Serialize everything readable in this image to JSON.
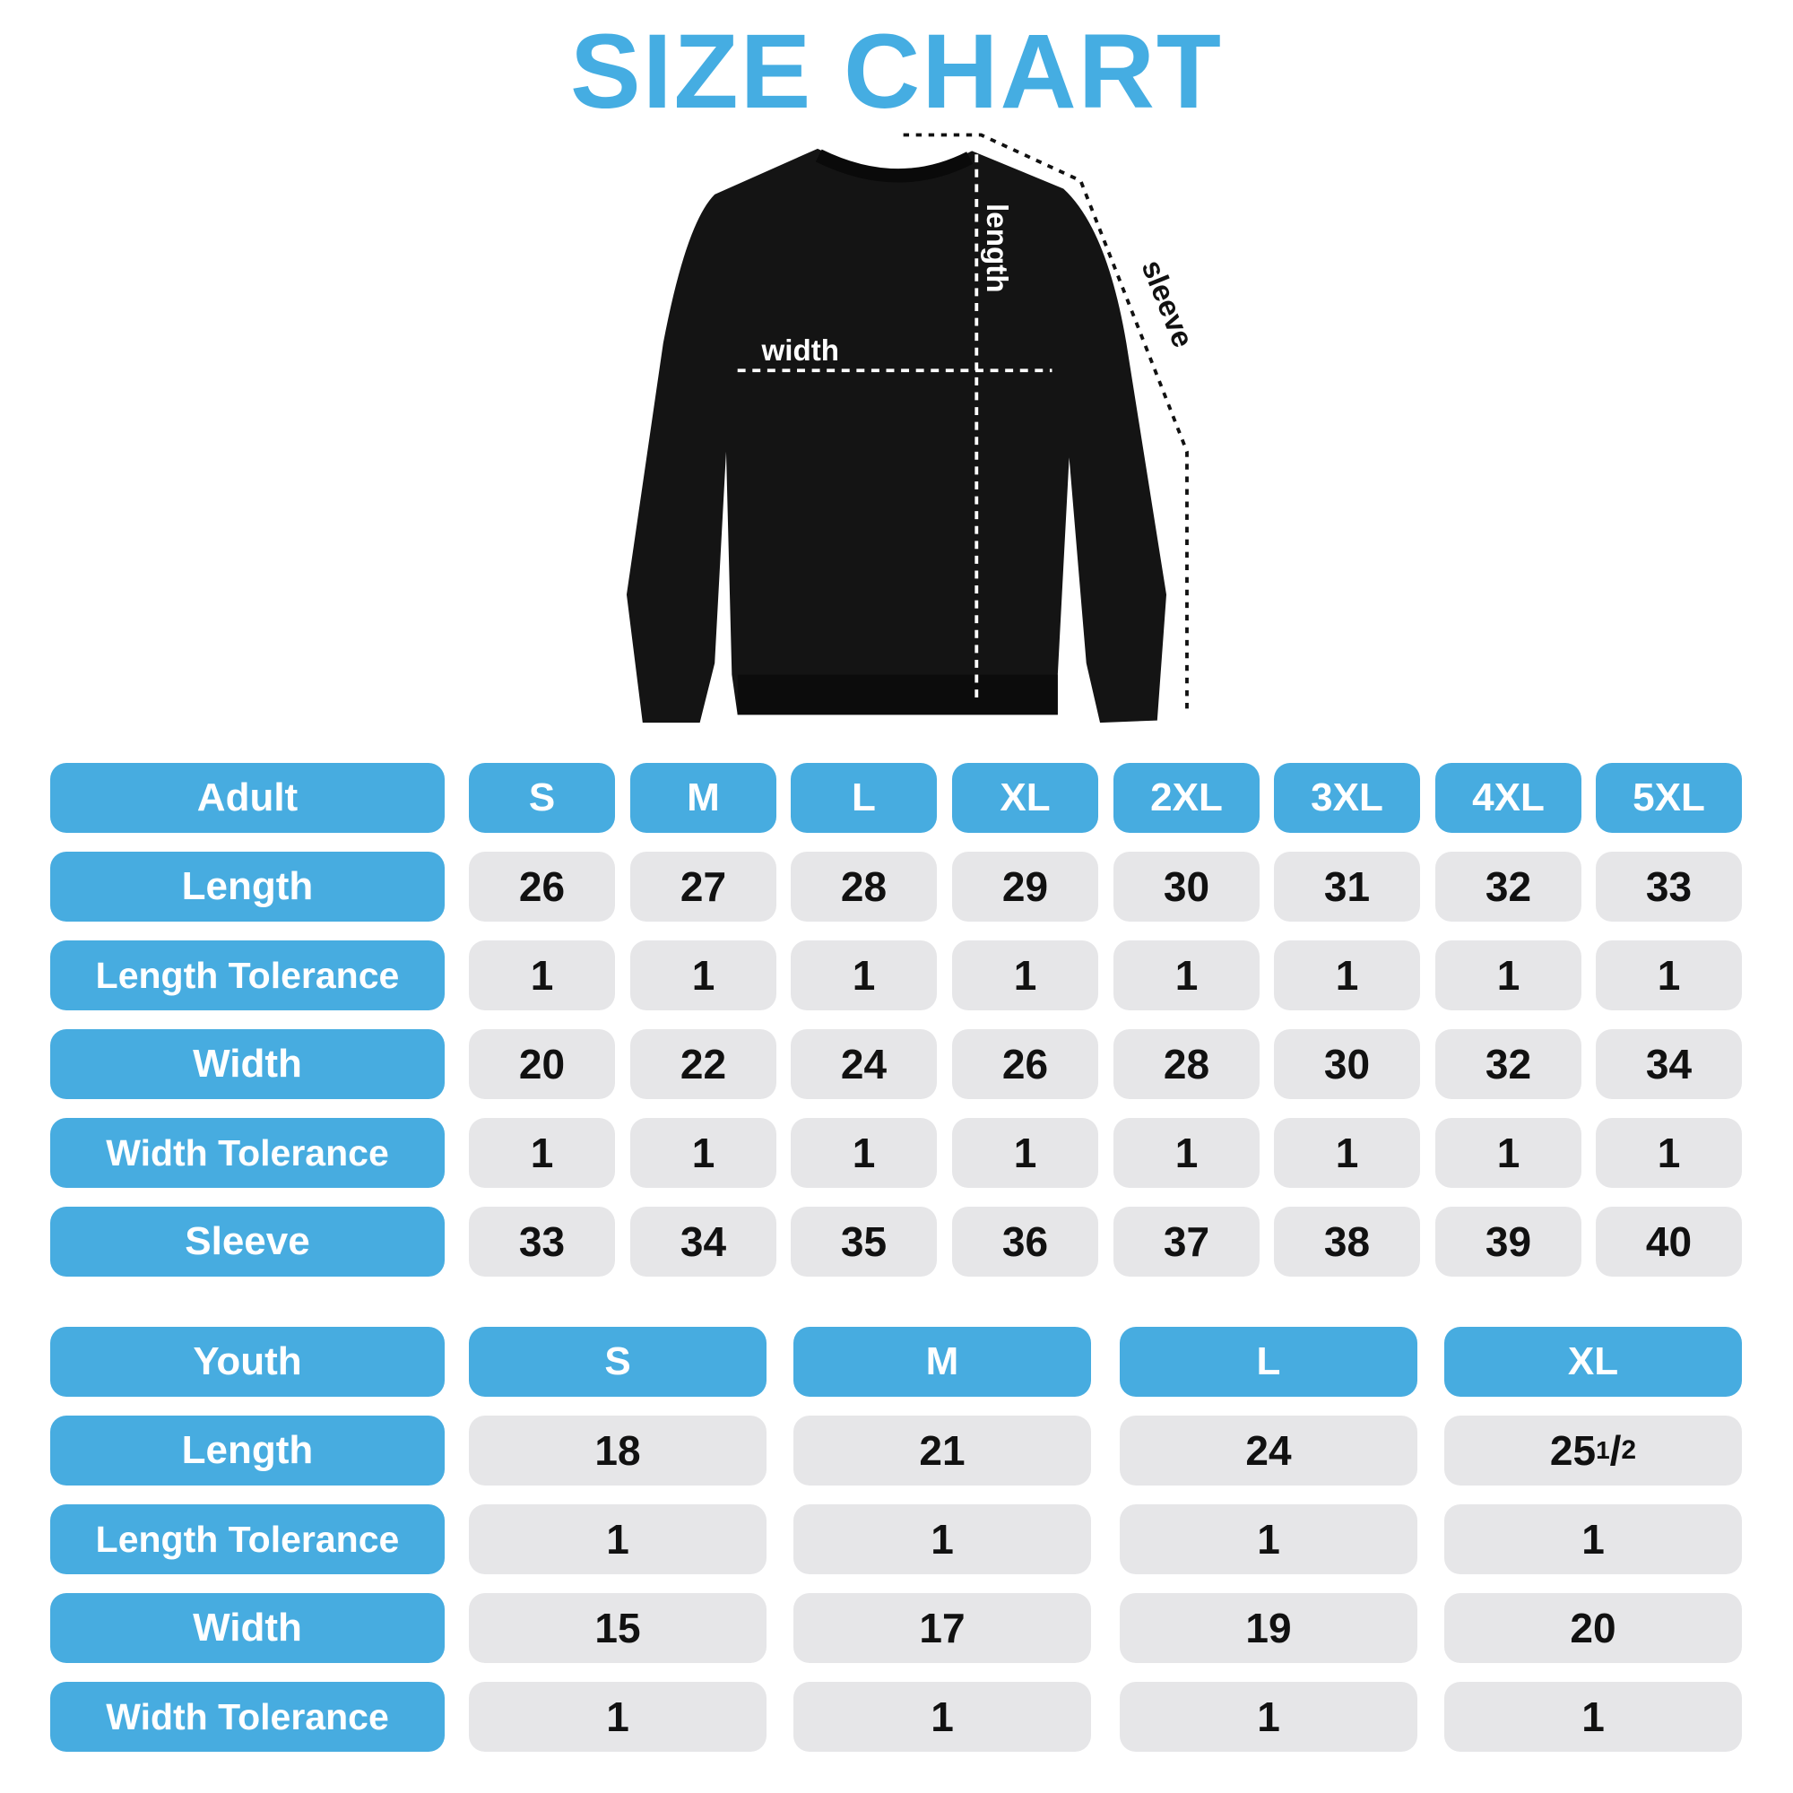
{
  "title": "SIZE CHART",
  "colors": {
    "accent": "#47ace0",
    "cell_bg": "#e6e6e8",
    "garment": "#141414"
  },
  "diagram": {
    "garment": "sweatshirt",
    "width_label": "width",
    "length_label": "length",
    "sleeve_label": "sleeve"
  },
  "adult": {
    "header": "Adult",
    "sizes": [
      "S",
      "M",
      "L",
      "XL",
      "2XL",
      "3XL",
      "4XL",
      "5XL"
    ],
    "rows": [
      {
        "label": "Length",
        "values": [
          "26",
          "27",
          "28",
          "29",
          "30",
          "31",
          "32",
          "33"
        ]
      },
      {
        "label": "Length Tolerance",
        "values": [
          "1",
          "1",
          "1",
          "1",
          "1",
          "1",
          "1",
          "1"
        ]
      },
      {
        "label": "Width",
        "values": [
          "20",
          "22",
          "24",
          "26",
          "28",
          "30",
          "32",
          "34"
        ]
      },
      {
        "label": "Width Tolerance",
        "values": [
          "1",
          "1",
          "1",
          "1",
          "1",
          "1",
          "1",
          "1"
        ]
      },
      {
        "label": "Sleeve",
        "values": [
          "33",
          "34",
          "35",
          "36",
          "37",
          "38",
          "39",
          "40"
        ]
      }
    ]
  },
  "youth": {
    "header": "Youth",
    "sizes": [
      "S",
      "M",
      "L",
      "XL"
    ],
    "rows": [
      {
        "label": "Length",
        "values": [
          "18",
          "21",
          "24",
          "25 1/2"
        ]
      },
      {
        "label": "Length Tolerance",
        "values": [
          "1",
          "1",
          "1",
          "1"
        ]
      },
      {
        "label": "Width",
        "values": [
          "15",
          "17",
          "19",
          "20"
        ]
      },
      {
        "label": "Width Tolerance",
        "values": [
          "1",
          "1",
          "1",
          "1"
        ]
      }
    ]
  }
}
